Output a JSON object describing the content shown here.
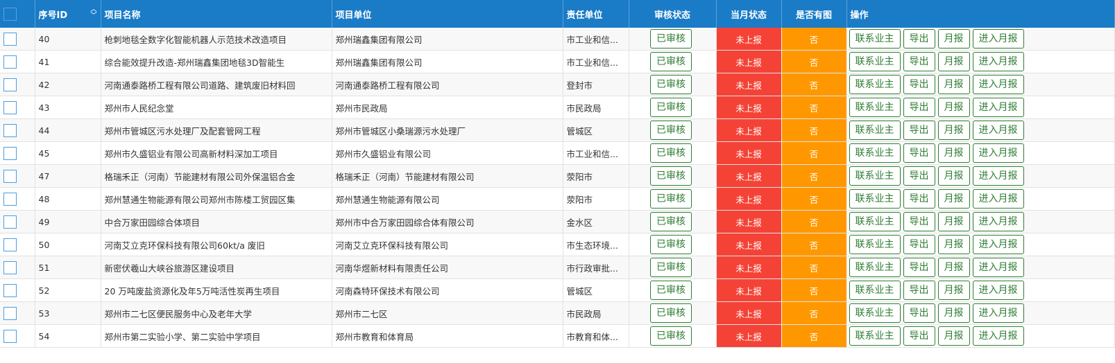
{
  "colors": {
    "header": "#1a7bc7",
    "not_reported": "#f44336",
    "no_figure": "#ff9800",
    "audited": "#2e7d32"
  },
  "headers": {
    "id": "序号ID",
    "name": "项目名称",
    "unit": "项目单位",
    "responsible": "责任单位",
    "audit": "审核状态",
    "monthly": "当月状态",
    "figure": "是否有图",
    "ops": "操作"
  },
  "actions": {
    "contact": "联系业主",
    "export": "导出",
    "monthly": "月报",
    "enter_monthly": "进入月报"
  },
  "rows": [
    {
      "id": "40",
      "name": "枪刺地毯全数字化智能机器人示范技术改造项目",
      "unit": "郑州瑞鑫集团有限公司",
      "responsible": "市工业和信...",
      "audit": "已审核",
      "monthly": "未上报",
      "figure": "否"
    },
    {
      "id": "41",
      "name": "综合能效提升改造-郑州瑞鑫集团地毯3D智能生",
      "unit": "郑州瑞鑫集团有限公司",
      "responsible": "市工业和信...",
      "audit": "已审核",
      "monthly": "未上报",
      "figure": "否"
    },
    {
      "id": "42",
      "name": "河南通泰路桥工程有限公司道路、建筑废旧材料回",
      "unit": "河南通泰路桥工程有限公司",
      "responsible": "登封市",
      "audit": "已审核",
      "monthly": "未上报",
      "figure": "否"
    },
    {
      "id": "43",
      "name": "郑州市人民纪念堂",
      "unit": "郑州市民政局",
      "responsible": "市民政局",
      "audit": "已审核",
      "monthly": "未上报",
      "figure": "否"
    },
    {
      "id": "44",
      "name": "郑州市管城区污水处理厂及配套管网工程",
      "unit": "郑州市管城区小桑瑞源污水处理厂",
      "responsible": "管城区",
      "audit": "已审核",
      "monthly": "未上报",
      "figure": "否"
    },
    {
      "id": "45",
      "name": "郑州市久盛铝业有限公司高新材料深加工项目",
      "unit": "郑州市久盛铝业有限公司",
      "responsible": "市工业和信...",
      "audit": "已审核",
      "monthly": "未上报",
      "figure": "否"
    },
    {
      "id": "47",
      "name": "格瑞禾正（河南）节能建材有限公司外保温铝合金",
      "unit": "格瑞禾正（河南）节能建材有限公司",
      "responsible": "荥阳市",
      "audit": "已审核",
      "monthly": "未上报",
      "figure": "否"
    },
    {
      "id": "48",
      "name": "郑州慧通生物能源有限公司郑州市陈楼工贸园区集",
      "unit": "郑州慧通生物能源有限公司",
      "responsible": "荥阳市",
      "audit": "已审核",
      "monthly": "未上报",
      "figure": "否"
    },
    {
      "id": "49",
      "name": "中合万家田园综合体项目",
      "unit": "郑州市中合万家田园综合体有限公司",
      "responsible": "金水区",
      "audit": "已审核",
      "monthly": "未上报",
      "figure": "否"
    },
    {
      "id": "50",
      "name": "河南艾立克环保科技有限公司60kt/a 废旧",
      "unit": "河南艾立克环保科技有限公司",
      "responsible": "市生态环境...",
      "audit": "已审核",
      "monthly": "未上报",
      "figure": "否"
    },
    {
      "id": "51",
      "name": "新密伏羲山大峡谷旅游区建设项目",
      "unit": "河南华煜新材料有限责任公司",
      "responsible": "市行政审批...",
      "audit": "已审核",
      "monthly": "未上报",
      "figure": "否"
    },
    {
      "id": "52",
      "name": "20 万吨废盐资源化及年5万吨活性炭再生项目",
      "unit": "河南森特环保技术有限公司",
      "responsible": "管城区",
      "audit": "已审核",
      "monthly": "未上报",
      "figure": "否"
    },
    {
      "id": "53",
      "name": "郑州市二七区便民服务中心及老年大学",
      "unit": "郑州市二七区",
      "responsible": "市民政局",
      "audit": "已审核",
      "monthly": "未上报",
      "figure": "否"
    },
    {
      "id": "54",
      "name": "郑州市第二实验小学、第二实验中学项目",
      "unit": "郑州市教育和体育局",
      "responsible": "市教育和体...",
      "audit": "已审核",
      "monthly": "未上报",
      "figure": "否"
    }
  ]
}
